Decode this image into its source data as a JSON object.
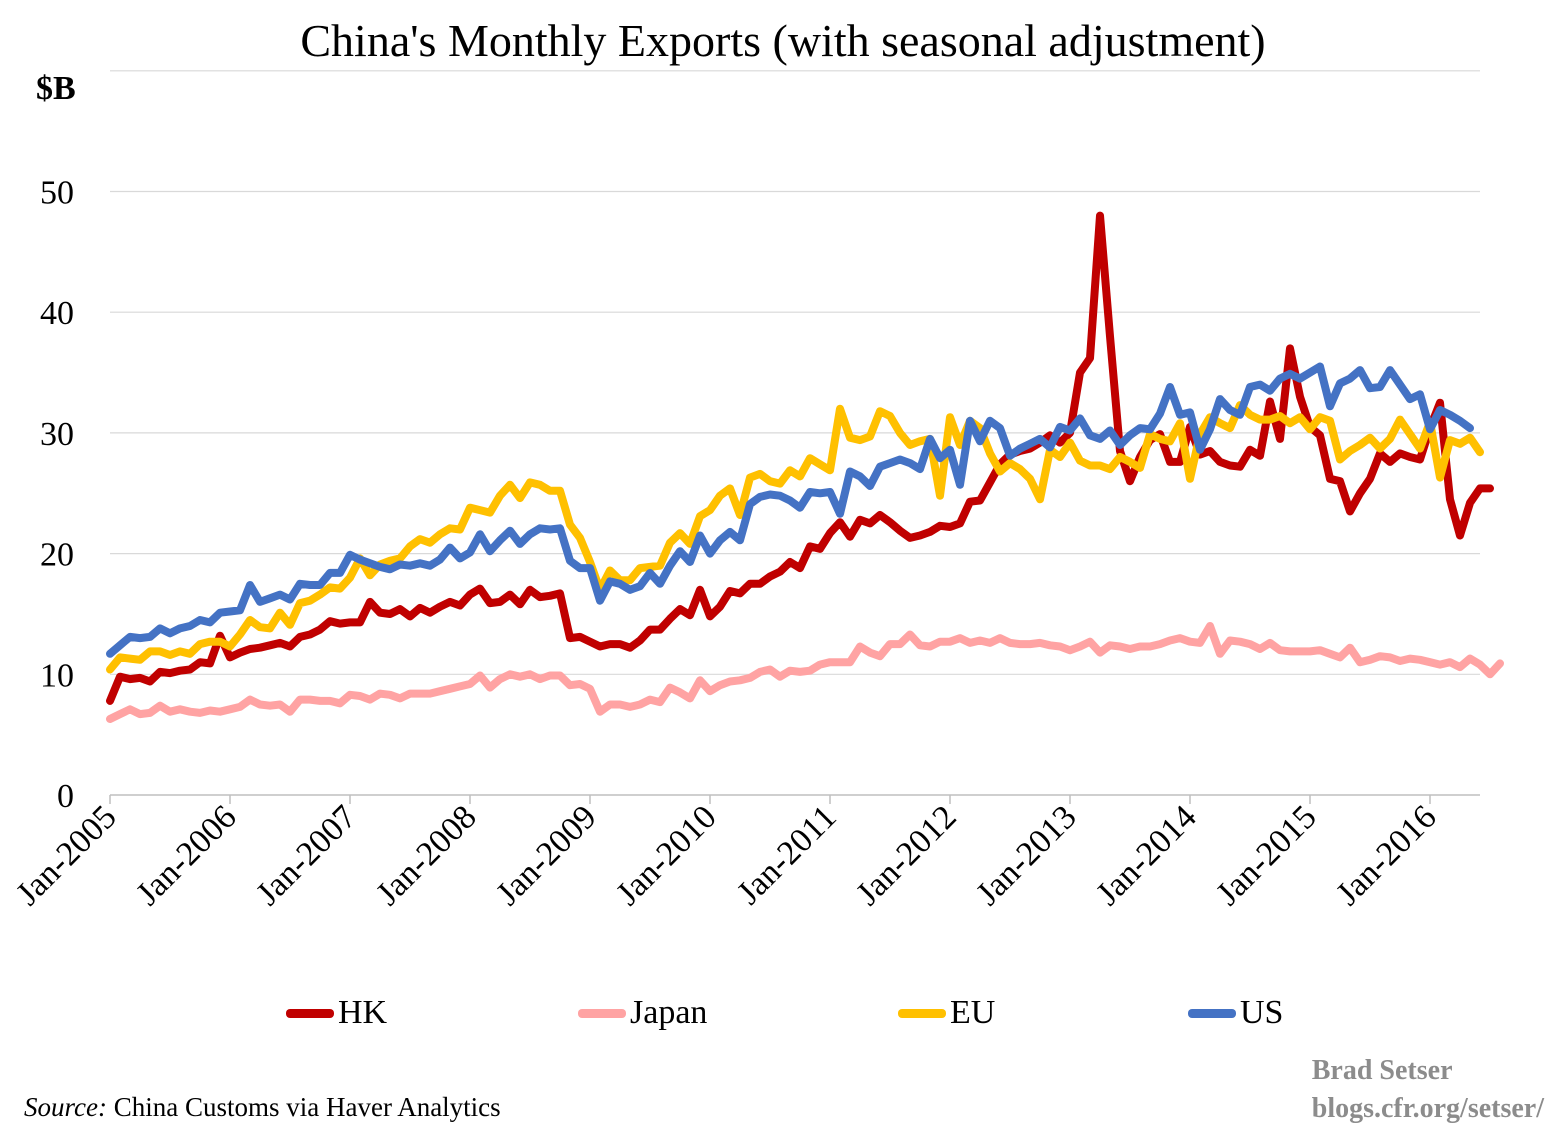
{
  "chart_data": {
    "type": "line",
    "title": "China's Monthly Exports (with seasonal adjustment)",
    "ylabel": "$B",
    "ylim": [
      0,
      55
    ],
    "yticks": [
      0,
      10,
      20,
      30,
      40,
      50
    ],
    "x_start": "Jan-2005",
    "x_tick_labels": [
      "Jan-2005",
      "Jan-2006",
      "Jan-2007",
      "Jan-2008",
      "Jan-2009",
      "Jan-2010",
      "Jan-2011",
      "Jan-2012",
      "Jan-2013",
      "Jan-2014",
      "Jan-2015",
      "Jan-2016"
    ],
    "grid": true,
    "legend_position": "bottom",
    "series": [
      {
        "name": "HK",
        "color": "#c00000",
        "values": [
          7.8,
          9.8,
          9.6,
          9.7,
          9.4,
          10.2,
          10.1,
          10.3,
          10.4,
          11.0,
          10.9,
          13.2,
          11.4,
          11.8,
          12.1,
          12.2,
          12.4,
          12.6,
          12.3,
          13.1,
          13.3,
          13.7,
          14.4,
          14.2,
          14.3,
          14.3,
          16.0,
          15.1,
          15.0,
          15.4,
          14.8,
          15.5,
          15.1,
          15.6,
          16.0,
          15.7,
          16.6,
          17.1,
          15.9,
          16.0,
          16.6,
          15.8,
          17.0,
          16.4,
          16.5,
          16.7,
          13.0,
          13.1,
          12.7,
          12.3,
          12.5,
          12.5,
          12.2,
          12.8,
          13.7,
          13.7,
          14.6,
          15.4,
          14.9,
          17.0,
          14.8,
          15.6,
          16.9,
          16.7,
          17.5,
          17.5,
          18.1,
          18.5,
          19.3,
          18.8,
          20.6,
          20.4,
          21.7,
          22.6,
          21.4,
          22.8,
          22.5,
          23.2,
          22.6,
          21.9,
          21.3,
          21.5,
          21.8,
          22.3,
          22.2,
          22.5,
          24.3,
          24.4,
          25.9,
          27.4,
          28.2,
          28.5,
          28.7,
          29.2,
          29.8,
          29.2,
          30.0,
          35.0,
          36.2,
          48.0,
          38.0,
          28.5,
          26.0,
          28.0,
          29.4,
          29.9,
          27.6,
          27.6,
          30.5,
          28.2,
          28.5,
          27.6,
          27.3,
          27.2,
          28.6,
          28.1,
          32.6,
          29.5,
          37.0,
          33.0,
          30.5,
          29.8,
          26.2,
          26.0,
          23.5,
          25.0,
          26.2,
          28.3,
          27.6,
          28.3,
          28.0,
          27.8,
          30.4,
          32.5,
          24.5,
          21.5,
          24.2,
          25.4,
          25.4
        ]
      },
      {
        "name": "Japan",
        "color": "#ffa3a3",
        "values": [
          6.3,
          6.7,
          7.1,
          6.7,
          6.8,
          7.4,
          6.9,
          7.1,
          6.9,
          6.8,
          7.0,
          6.9,
          7.1,
          7.3,
          7.9,
          7.5,
          7.4,
          7.5,
          6.9,
          7.9,
          7.9,
          7.8,
          7.8,
          7.6,
          8.3,
          8.2,
          7.9,
          8.4,
          8.3,
          8.0,
          8.4,
          8.4,
          8.4,
          8.6,
          8.8,
          9.0,
          9.2,
          9.9,
          8.9,
          9.6,
          10.0,
          9.8,
          10.0,
          9.6,
          9.9,
          9.9,
          9.1,
          9.2,
          8.8,
          6.9,
          7.5,
          7.5,
          7.3,
          7.5,
          7.9,
          7.7,
          8.9,
          8.5,
          8.0,
          9.5,
          8.6,
          9.1,
          9.4,
          9.5,
          9.7,
          10.2,
          10.4,
          9.8,
          10.3,
          10.2,
          10.3,
          10.8,
          11.0,
          11.0,
          11.0,
          12.3,
          11.8,
          11.5,
          12.5,
          12.5,
          13.3,
          12.4,
          12.3,
          12.7,
          12.7,
          13.0,
          12.6,
          12.8,
          12.6,
          13.0,
          12.6,
          12.5,
          12.5,
          12.6,
          12.4,
          12.3,
          12.0,
          12.3,
          12.7,
          11.8,
          12.4,
          12.3,
          12.1,
          12.3,
          12.3,
          12.5,
          12.8,
          13.0,
          12.7,
          12.6,
          14.0,
          11.7,
          12.8,
          12.7,
          12.5,
          12.1,
          12.6,
          12.0,
          11.9,
          11.9,
          11.9,
          12.0,
          11.7,
          11.4,
          12.2,
          11.0,
          11.2,
          11.5,
          11.4,
          11.1,
          11.3,
          11.2,
          11.0,
          10.8,
          11.0,
          10.6,
          11.3,
          10.8,
          10.0,
          10.9
        ]
      },
      {
        "name": "EU",
        "color": "#ffc000",
        "values": [
          10.4,
          11.4,
          11.3,
          11.2,
          11.9,
          11.9,
          11.6,
          11.9,
          11.7,
          12.5,
          12.7,
          12.7,
          12.3,
          13.3,
          14.5,
          13.9,
          13.8,
          15.1,
          14.1,
          15.9,
          16.1,
          16.6,
          17.2,
          17.1,
          18.0,
          19.6,
          18.2,
          19.1,
          19.4,
          19.6,
          20.6,
          21.2,
          20.9,
          21.6,
          22.1,
          22.0,
          23.8,
          23.6,
          23.4,
          24.8,
          25.7,
          24.6,
          25.9,
          25.7,
          25.2,
          25.2,
          22.4,
          21.3,
          19.3,
          17.0,
          18.6,
          17.8,
          17.8,
          18.8,
          18.9,
          19.0,
          20.9,
          21.7,
          20.8,
          23.1,
          23.6,
          24.8,
          25.4,
          23.2,
          26.3,
          26.6,
          26.0,
          25.8,
          26.9,
          26.4,
          27.9,
          27.4,
          26.9,
          32.0,
          29.6,
          29.4,
          29.7,
          31.8,
          31.4,
          30.0,
          29.0,
          29.3,
          29.5,
          24.8,
          31.3,
          29.0,
          31.0,
          30.4,
          28.3,
          26.8,
          27.5,
          27.0,
          26.2,
          24.5,
          28.6,
          28.0,
          29.2,
          27.7,
          27.3,
          27.3,
          27.0,
          28.0,
          27.6,
          27.1,
          29.9,
          29.5,
          29.3,
          30.8,
          26.2,
          29.9,
          31.3,
          30.8,
          30.4,
          32.3,
          31.5,
          31.1,
          31.1,
          31.4,
          30.8,
          31.3,
          30.3,
          31.3,
          31.0,
          27.8,
          28.5,
          29.0,
          29.6,
          28.7,
          29.5,
          31.1,
          29.9,
          28.7,
          30.9,
          26.3,
          29.4,
          29.1,
          29.6,
          28.4
        ]
      },
      {
        "name": "US",
        "color": "#4472c4",
        "values": [
          11.7,
          12.4,
          13.1,
          13.0,
          13.1,
          13.8,
          13.4,
          13.8,
          14.0,
          14.5,
          14.3,
          15.1,
          15.2,
          15.3,
          17.4,
          16.0,
          16.3,
          16.6,
          16.2,
          17.5,
          17.4,
          17.4,
          18.4,
          18.4,
          19.9,
          19.5,
          19.2,
          18.9,
          18.7,
          19.1,
          19.0,
          19.2,
          19.0,
          19.5,
          20.5,
          19.6,
          20.1,
          21.6,
          20.2,
          21.1,
          21.9,
          20.8,
          21.6,
          22.1,
          22.0,
          22.1,
          19.4,
          18.8,
          18.8,
          16.1,
          17.7,
          17.5,
          17.0,
          17.3,
          18.4,
          17.5,
          19.0,
          20.2,
          19.3,
          21.5,
          20.0,
          21.1,
          21.8,
          21.1,
          24.1,
          24.7,
          24.9,
          24.8,
          24.4,
          23.8,
          25.1,
          25.0,
          25.1,
          23.3,
          26.8,
          26.4,
          25.6,
          27.2,
          27.5,
          27.8,
          27.5,
          27.0,
          29.5,
          27.9,
          28.6,
          25.7,
          31.0,
          29.3,
          31.0,
          30.4,
          28.1,
          28.7,
          29.1,
          29.5,
          28.8,
          30.5,
          30.2,
          31.2,
          29.8,
          29.5,
          30.2,
          29.0,
          29.8,
          30.4,
          30.3,
          31.6,
          33.8,
          31.5,
          31.7,
          28.6,
          30.3,
          32.8,
          31.9,
          31.5,
          33.8,
          34.0,
          33.5,
          34.5,
          34.9,
          34.5,
          35.0,
          35.5,
          32.2,
          34.1,
          34.5,
          35.2,
          33.7,
          33.8,
          35.2,
          34.0,
          32.8,
          33.2,
          30.3,
          31.9,
          31.5,
          31.0,
          30.4
        ]
      }
    ]
  },
  "source": {
    "prefix": "Source:",
    "text": "China Customs via Haver Analytics"
  },
  "credit": {
    "line1": "Brad Setser",
    "line2": "blogs.cfr.org/setser/"
  }
}
